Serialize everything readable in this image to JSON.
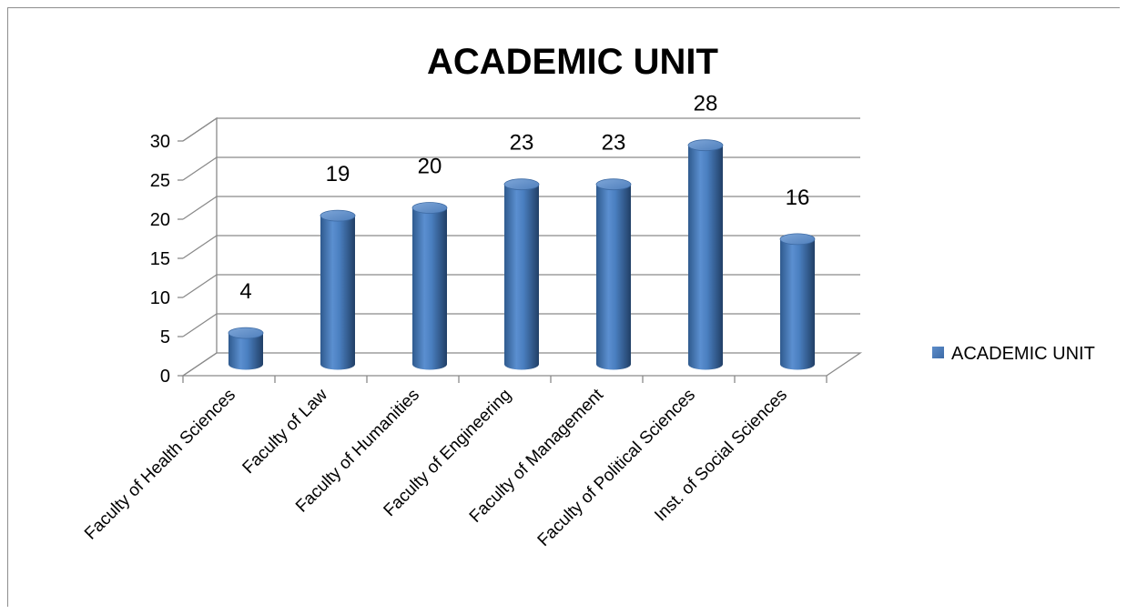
{
  "chart_data": {
    "type": "bar",
    "title": "ACADEMIC UNIT",
    "categories": [
      "Faculty of Health Sciences",
      "Faculty of Law",
      "Faculty of Humanities",
      "Faculty of Engineering",
      "Faculty of Management",
      "Faculty of Political Sciences",
      "Inst. of Social Sciences"
    ],
    "series": [
      {
        "name": "ACADEMIC UNIT",
        "values": [
          4,
          19,
          20,
          23,
          23,
          28,
          16
        ],
        "color": "#4f81bd"
      }
    ],
    "ylim": [
      0,
      30
    ],
    "yticks": [
      "0",
      "5",
      "10",
      "15",
      "20",
      "25",
      "30"
    ],
    "data_labels": [
      "4",
      "19",
      "20",
      "23",
      "23",
      "28",
      "16"
    ],
    "grid": true,
    "legend_position": "right",
    "style": "3d-cylinder"
  }
}
